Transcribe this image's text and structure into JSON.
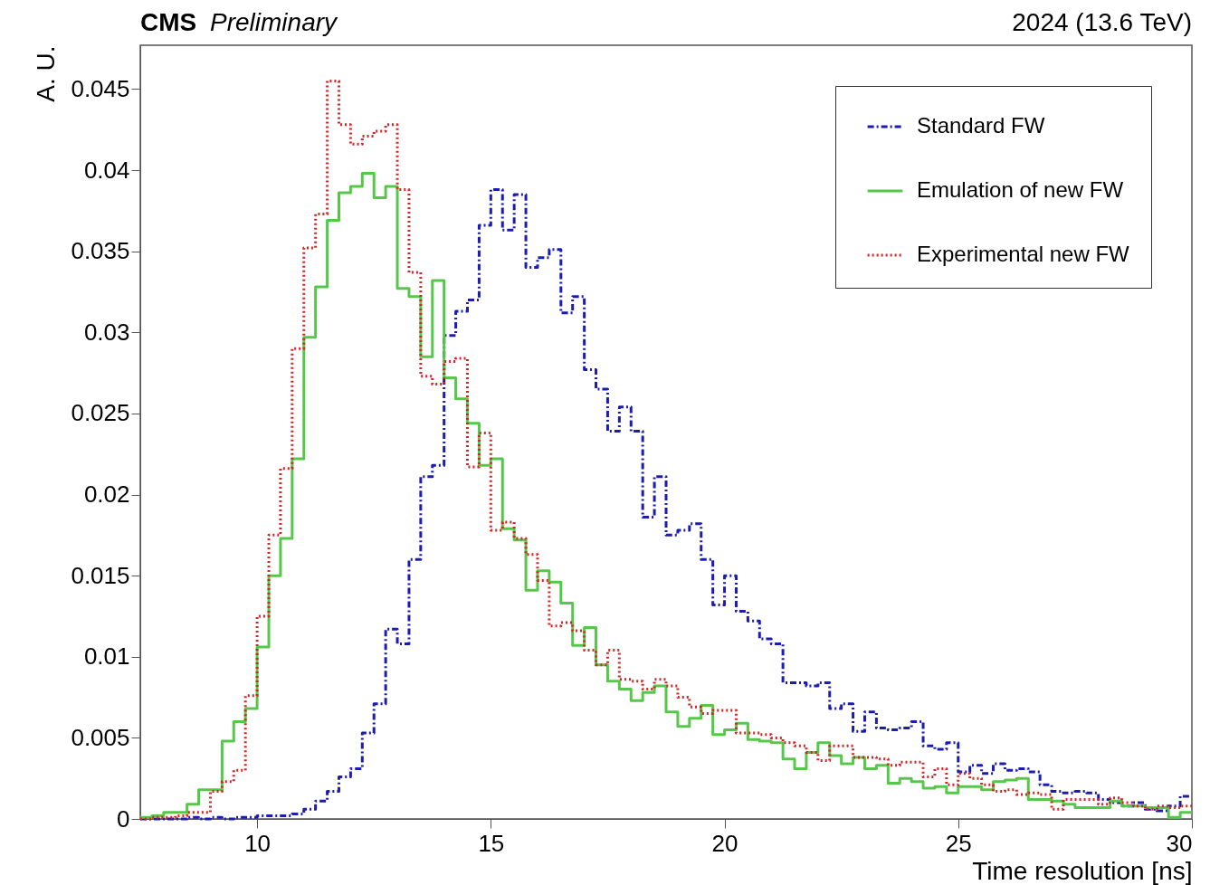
{
  "chart_data": {
    "type": "histogram",
    "title": "CMS",
    "subtitle": "Preliminary",
    "xlabel": "Time resolution [ns]",
    "ylabel": "A. U.",
    "annotations": [
      "2024 (13.6 TeV)"
    ],
    "bins": [
      7.5,
      7.75,
      8,
      8.25,
      8.5,
      8.75,
      9,
      9.25,
      9.5,
      9.75,
      10,
      10.25,
      10.5,
      10.75,
      11,
      11.25,
      11.5,
      11.75,
      12,
      12.25,
      12.5,
      12.75,
      13,
      13.25,
      13.5,
      13.75,
      14,
      14.25,
      14.5,
      14.75,
      15,
      15.25,
      15.5,
      15.75,
      16,
      16.25,
      16.5,
      16.75,
      17,
      17.25,
      17.5,
      17.75,
      18,
      18.25,
      18.5,
      18.75,
      19,
      19.25,
      19.5,
      19.75,
      20,
      20.25,
      20.5,
      20.75,
      21,
      21.25,
      21.5,
      21.75,
      22,
      22.25,
      22.5,
      22.75,
      23,
      23.25,
      23.5,
      23.75,
      24,
      24.25,
      24.5,
      24.75,
      25,
      25.25,
      25.5,
      25.75,
      26,
      26.25,
      26.5,
      26.75,
      27,
      27.25,
      27.5,
      27.75,
      28,
      28.25,
      28.5,
      28.75,
      29,
      29.25,
      29.5,
      29.75,
      30
    ],
    "series": [
      {
        "name": "Standard FW",
        "color": "#1c1cb0",
        "line_style": "dashed",
        "values": [
          0,
          0,
          0,
          0,
          0.0001,
          0,
          0.0001,
          0,
          0.0001,
          0.0001,
          0.0002,
          0.0002,
          0.0002,
          0.0003,
          0.0006,
          0.0011,
          0.0017,
          0.0026,
          0.0031,
          0.0053,
          0.0071,
          0.0117,
          0.0108,
          0.016,
          0.0211,
          0.0218,
          0.0298,
          0.0313,
          0.032,
          0.0366,
          0.0388,
          0.0363,
          0.0385,
          0.034,
          0.0346,
          0.0351,
          0.0312,
          0.0322,
          0.0277,
          0.0265,
          0.0239,
          0.0254,
          0.0239,
          0.0186,
          0.0211,
          0.0175,
          0.0178,
          0.0182,
          0.016,
          0.0132,
          0.015,
          0.0128,
          0.0122,
          0.0111,
          0.0108,
          0.0084,
          0.0084,
          0.0082,
          0.0084,
          0.0068,
          0.0071,
          0.0054,
          0.0066,
          0.0056,
          0.0055,
          0.0056,
          0.006,
          0.0045,
          0.0043,
          0.0047,
          0.0029,
          0.0033,
          0.0028,
          0.0034,
          0.003,
          0.0031,
          0.0029,
          0.0021,
          0.0017,
          0.0016,
          0.0017,
          0.0016,
          0.0012,
          0.001,
          0.0008,
          0.001,
          0.0006,
          0.0005,
          0.0008,
          0.0014
        ]
      },
      {
        "name": "Emulation of new FW",
        "color": "#55c84a",
        "line_style": "solid",
        "values": [
          0.0001,
          0.0002,
          0.0004,
          0.0004,
          0.0009,
          0.0018,
          0.0018,
          0.0048,
          0.006,
          0.0068,
          0.0106,
          0.015,
          0.0173,
          0.0222,
          0.0297,
          0.0328,
          0.0369,
          0.0386,
          0.039,
          0.0398,
          0.0383,
          0.039,
          0.0327,
          0.0322,
          0.0285,
          0.0332,
          0.0272,
          0.0259,
          0.0244,
          0.0218,
          0.0222,
          0.0179,
          0.0172,
          0.0141,
          0.0153,
          0.0146,
          0.0133,
          0.0107,
          0.0118,
          0.0095,
          0.0085,
          0.008,
          0.0073,
          0.0078,
          0.0082,
          0.0066,
          0.0057,
          0.0062,
          0.007,
          0.0052,
          0.0055,
          0.0059,
          0.0049,
          0.0048,
          0.0047,
          0.0037,
          0.0031,
          0.0041,
          0.0047,
          0.0039,
          0.0034,
          0.0038,
          0.0031,
          0.0033,
          0.0022,
          0.0025,
          0.0023,
          0.0019,
          0.002,
          0.0016,
          0.002,
          0.002,
          0.0018,
          0.0023,
          0.0024,
          0.0025,
          0.0012,
          0.0012,
          0.0011,
          0.0009,
          0.0007,
          0.0007,
          0.0007,
          0.0011,
          0.0008,
          0.0008,
          0.0007,
          0.0007,
          0.0001,
          0.0004
        ]
      },
      {
        "name": "Experimental new FW",
        "color": "#d42424",
        "line_style": "dotted",
        "values": [
          0,
          0.0001,
          0.0001,
          0.0002,
          0.0004,
          0.0004,
          0.0017,
          0.0023,
          0.003,
          0.0076,
          0.0125,
          0.0175,
          0.0216,
          0.029,
          0.0352,
          0.0373,
          0.0455,
          0.0428,
          0.0416,
          0.0421,
          0.0424,
          0.0428,
          0.0388,
          0.0337,
          0.0273,
          0.0268,
          0.0282,
          0.0284,
          0.0217,
          0.0238,
          0.0178,
          0.0183,
          0.0173,
          0.0163,
          0.0147,
          0.0119,
          0.0121,
          0.0116,
          0.0104,
          0.0095,
          0.0104,
          0.0086,
          0.0085,
          0.008,
          0.0086,
          0.0082,
          0.0075,
          0.0069,
          0.0065,
          0.0067,
          0.0067,
          0.0053,
          0.0053,
          0.0052,
          0.005,
          0.0047,
          0.0045,
          0.0041,
          0.0036,
          0.0045,
          0.0045,
          0.0038,
          0.0038,
          0.0037,
          0.0033,
          0.0035,
          0.0035,
          0.0026,
          0.0031,
          0.0021,
          0.0028,
          0.0025,
          0.0021,
          0.0017,
          0.0018,
          0.0015,
          0.0016,
          0.0015,
          0.0006,
          0.0012,
          0.0012,
          0.0012,
          0.0009,
          0.0013,
          0.001,
          0.0008,
          0.0006,
          0.0008,
          0.0007,
          0.0008
        ]
      }
    ],
    "xlim": [
      7.5,
      30
    ],
    "xticks": [
      10,
      15,
      20,
      25,
      30
    ],
    "ylim": [
      0,
      0.0477
    ],
    "yticks": [
      0,
      0.005,
      0.01,
      0.015,
      0.02,
      0.025,
      0.03,
      0.035,
      0.04,
      0.045
    ],
    "grid": false,
    "legend": "top right"
  }
}
